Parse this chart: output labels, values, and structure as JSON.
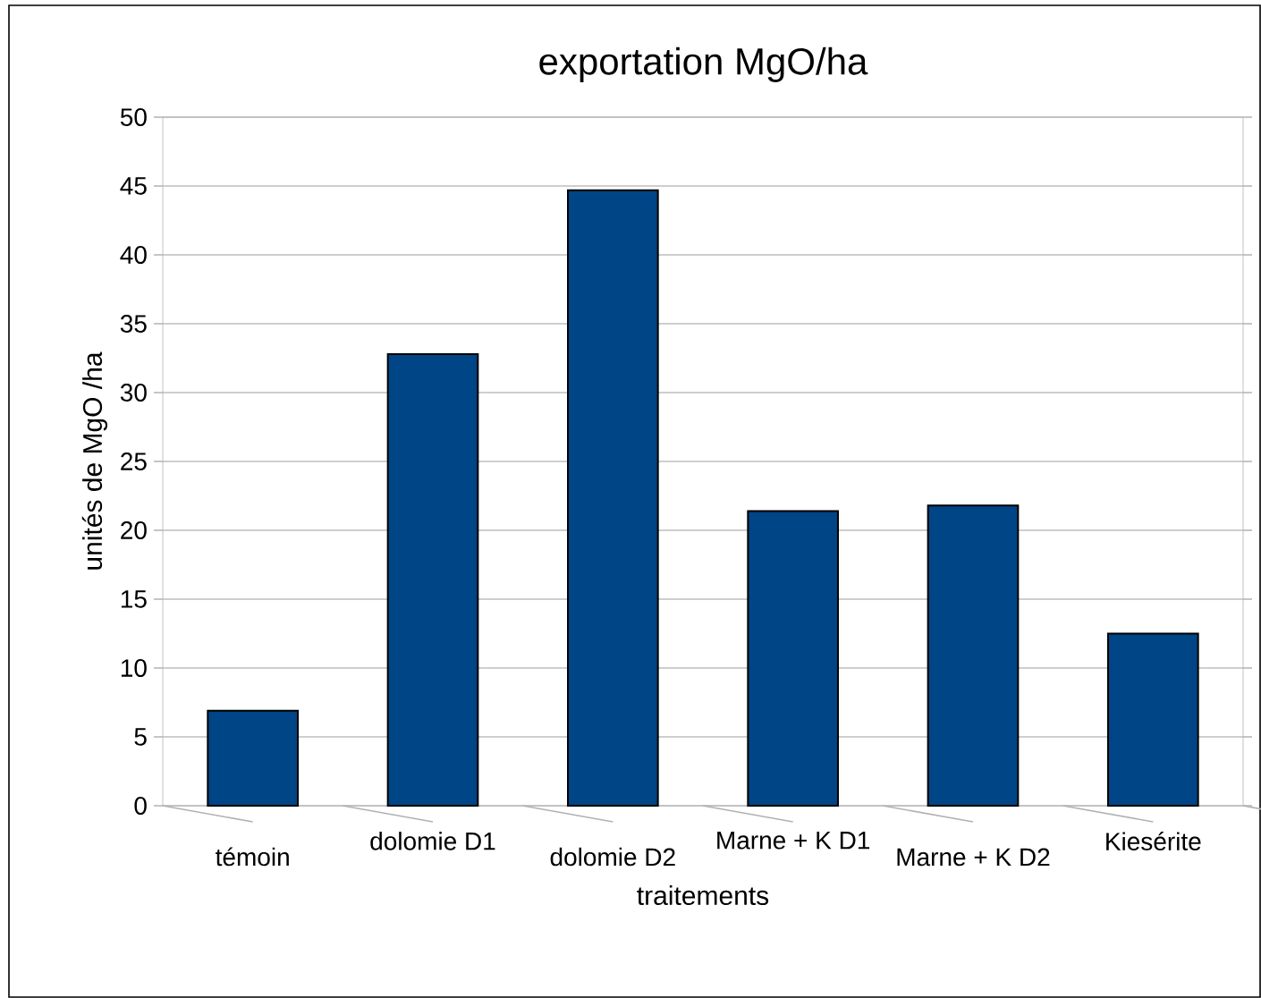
{
  "chart_data": {
    "type": "bar",
    "title": "exportation MgO/ha",
    "xlabel": "traitements",
    "ylabel": "unités de MgO /ha",
    "categories": [
      "témoin",
      "dolomie D1",
      "dolomie D2",
      "Marne + K D1",
      "Marne + K D2",
      "Kiesérite"
    ],
    "values": [
      6.9,
      32.8,
      44.7,
      21.4,
      21.8,
      12.5
    ],
    "color": "#004586",
    "ylim": [
      0,
      50
    ],
    "yticks": [
      0,
      5,
      10,
      15,
      20,
      25,
      30,
      35,
      40,
      45,
      50
    ],
    "grid": "y"
  }
}
